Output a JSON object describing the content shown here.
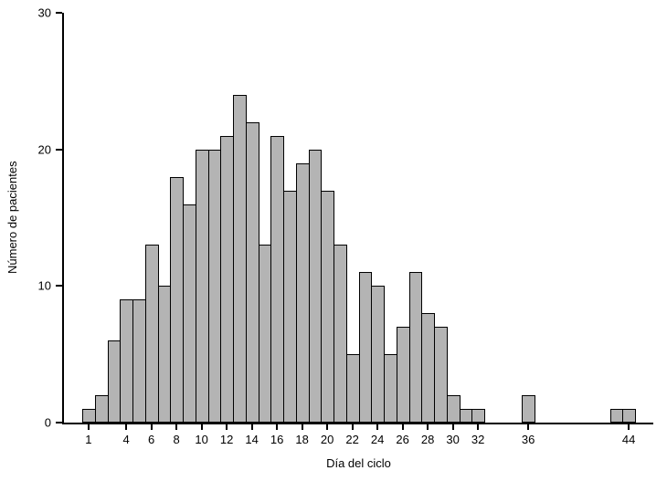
{
  "figure": {
    "background": "#ffffff"
  },
  "chart_data": {
    "type": "bar",
    "subtype": "histogram",
    "title": "",
    "xlabel": "Día del ciclo",
    "ylabel": "Número de pacientes",
    "ylim": [
      0,
      30
    ],
    "yticks": [
      0,
      10,
      20,
      30
    ],
    "xtick_days": [
      1,
      4,
      6,
      8,
      10,
      12,
      14,
      16,
      18,
      20,
      22,
      24,
      26,
      28,
      30,
      32,
      36,
      44
    ],
    "x_day_min": 1,
    "x_day_max": 44,
    "grid": false,
    "legend_position": "none",
    "bar_fill": "#b4b4b4",
    "bar_stroke": "#000000",
    "axis_color": "#000000",
    "bars": [
      {
        "day": 1,
        "value": 1
      },
      {
        "day": 2,
        "value": 2
      },
      {
        "day": 3,
        "value": 6
      },
      {
        "day": 4,
        "value": 9
      },
      {
        "day": 5,
        "value": 9
      },
      {
        "day": 6,
        "value": 13
      },
      {
        "day": 7,
        "value": 10
      },
      {
        "day": 8,
        "value": 18
      },
      {
        "day": 9,
        "value": 16
      },
      {
        "day": 10,
        "value": 20
      },
      {
        "day": 11,
        "value": 20
      },
      {
        "day": 12,
        "value": 21
      },
      {
        "day": 13,
        "value": 24
      },
      {
        "day": 14,
        "value": 22
      },
      {
        "day": 15,
        "value": 13
      },
      {
        "day": 16,
        "value": 21
      },
      {
        "day": 17,
        "value": 17
      },
      {
        "day": 18,
        "value": 19
      },
      {
        "day": 19,
        "value": 20
      },
      {
        "day": 20,
        "value": 17
      },
      {
        "day": 21,
        "value": 13
      },
      {
        "day": 22,
        "value": 5
      },
      {
        "day": 23,
        "value": 11
      },
      {
        "day": 24,
        "value": 10
      },
      {
        "day": 25,
        "value": 5
      },
      {
        "day": 26,
        "value": 7
      },
      {
        "day": 27,
        "value": 11
      },
      {
        "day": 28,
        "value": 8
      },
      {
        "day": 29,
        "value": 7
      },
      {
        "day": 30,
        "value": 2
      },
      {
        "day": 31,
        "value": 1
      },
      {
        "day": 32,
        "value": 1
      },
      {
        "day": 36,
        "value": 2
      },
      {
        "day": 43,
        "value": 1
      },
      {
        "day": 44,
        "value": 1
      }
    ]
  }
}
